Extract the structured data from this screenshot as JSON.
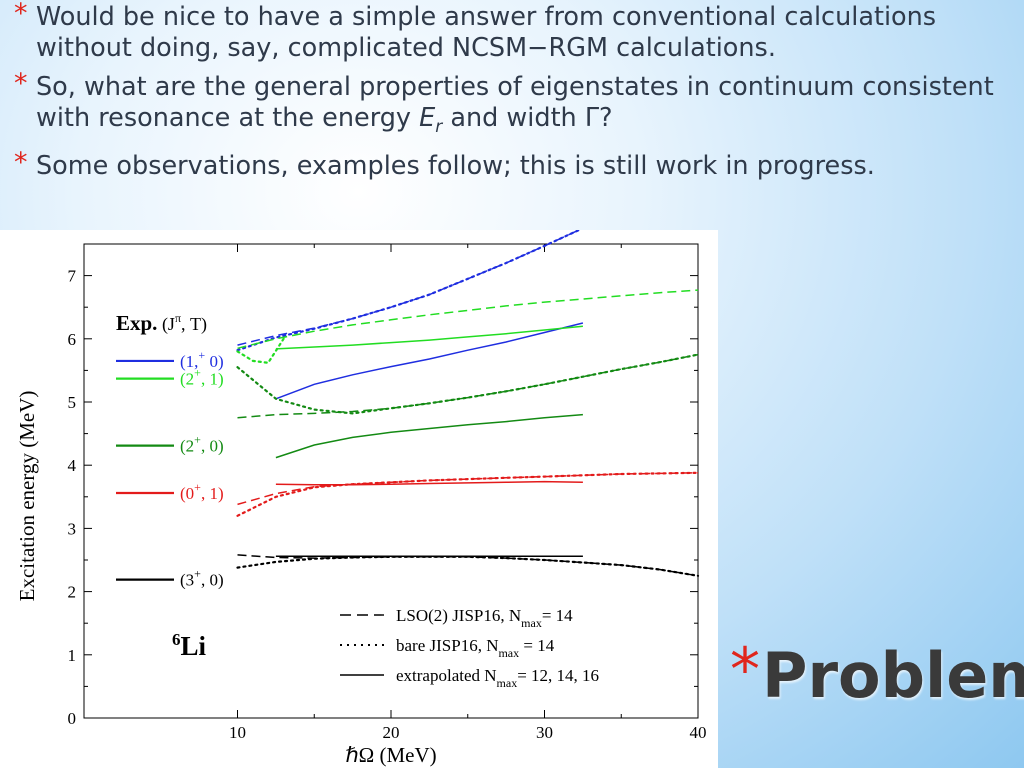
{
  "slide": {
    "bullets": [
      {
        "text": "Would be nice to have a simple answer from conventional calculations without doing, say, complicated NCSM−RGM calculations."
      },
      {
        "text_before": "So, what are the general properties of eigenstates in continuum consistent with resonance at the energy ",
        "symbol": "E",
        "subscript": "r",
        "text_after": " and width Γ?"
      },
      {
        "text": "Some observations, examples follow; this is still work in progress."
      }
    ],
    "title": "Problem",
    "star_glyph": "*",
    "accent_color": "#e0261d"
  },
  "chart_data": {
    "type": "line",
    "xlabel": "ℏΩ (MeV)",
    "ylabel": "Excitation energy (MeV)",
    "xlim": [
      0,
      40
    ],
    "ylim": [
      0,
      7.5
    ],
    "xticks": [
      10,
      20,
      30,
      40
    ],
    "yticks": [
      0,
      1,
      2,
      3,
      4,
      5,
      6,
      7
    ],
    "grid": false,
    "exp_header": {
      "bold": "Exp.",
      "rest": " (J",
      "sup": "π",
      "tail": ", T)"
    },
    "nucleus": {
      "mass": "6",
      "symbol": "Li"
    },
    "experimental_levels": [
      {
        "label_pre": "(1,",
        "label_sup": "+",
        "label_post": " 0)",
        "value": 5.65,
        "color": "#1f2ee0"
      },
      {
        "label_pre": "(2",
        "label_sup": "+",
        "label_post": ", 1)",
        "value": 5.37,
        "color": "#22dd22"
      },
      {
        "label_pre": "(2",
        "label_sup": "+",
        "label_post": ", 0)",
        "value": 4.31,
        "color": "#138a13"
      },
      {
        "label_pre": "(0",
        "label_sup": "+",
        "label_post": ", 1)",
        "value": 3.56,
        "color": "#e31b1b"
      },
      {
        "label_pre": "(3",
        "label_sup": "+",
        "label_post": ", 0)",
        "value": 2.19,
        "color": "#000000"
      }
    ],
    "legend": [
      {
        "style": "dashed",
        "text": "LSO(2) JISP16, N",
        "sub": "max",
        "tail": "= 14"
      },
      {
        "style": "dotted",
        "text": "bare JISP16, N",
        "sub": "max",
        "tail": " = 14"
      },
      {
        "style": "solid",
        "text": "extrapolated N",
        "sub": "max",
        "tail": "= 12, 14, 16"
      }
    ],
    "series": [
      {
        "state": "(1+,0)",
        "style": "dashed",
        "color": "#1f2ee0",
        "x": [
          10,
          12.5,
          15,
          17.5,
          20,
          22.5,
          25,
          27.5,
          30,
          32.5
        ],
        "y": [
          5.9,
          6.05,
          6.17,
          6.32,
          6.5,
          6.7,
          6.95,
          7.2,
          7.47,
          7.75
        ]
      },
      {
        "state": "(1+,0)",
        "style": "dotted",
        "color": "#1f2ee0",
        "x": [
          10,
          12.5,
          15,
          17.5,
          20,
          22.5,
          25,
          27.5,
          30,
          32.5
        ],
        "y": [
          5.82,
          6.02,
          6.16,
          6.32,
          6.5,
          6.7,
          6.95,
          7.2,
          7.47,
          7.75
        ]
      },
      {
        "state": "(1+,0)",
        "style": "solid",
        "color": "#1f2ee0",
        "x": [
          12.5,
          15,
          17.5,
          20,
          22.5,
          25,
          27.5,
          30,
          32.5
        ],
        "y": [
          5.05,
          5.28,
          5.43,
          5.56,
          5.68,
          5.82,
          5.95,
          6.1,
          6.25
        ]
      },
      {
        "state": "(2+,1)",
        "style": "dashed",
        "color": "#22dd22",
        "x": [
          10,
          12.5,
          15,
          17.5,
          20,
          22.5,
          25,
          27.5,
          30,
          32.5,
          35,
          37.5,
          40
        ],
        "y": [
          5.85,
          6.0,
          6.12,
          6.22,
          6.3,
          6.38,
          6.45,
          6.52,
          6.58,
          6.63,
          6.68,
          6.73,
          6.77
        ]
      },
      {
        "state": "(2+,1)",
        "style": "dotted",
        "color": "#22dd22",
        "x": [
          10,
          11,
          12,
          13
        ],
        "y": [
          5.8,
          5.65,
          5.62,
          6.0
        ]
      },
      {
        "state": "(2+,1)",
        "style": "solid",
        "color": "#22dd22",
        "x": [
          12.5,
          15,
          17.5,
          20,
          22.5,
          25,
          27.5,
          30,
          32.5
        ],
        "y": [
          5.84,
          5.87,
          5.9,
          5.94,
          5.98,
          6.03,
          6.08,
          6.14,
          6.2
        ]
      },
      {
        "state": "(2+,0)",
        "style": "dashed",
        "color": "#138a13",
        "x": [
          10,
          12.5,
          15,
          17.5,
          20,
          22.5,
          25,
          27.5,
          30,
          32.5,
          35,
          37.5,
          40
        ],
        "y": [
          4.75,
          4.8,
          4.82,
          4.85,
          4.9,
          4.98,
          5.07,
          5.17,
          5.28,
          5.4,
          5.52,
          5.63,
          5.75
        ]
      },
      {
        "state": "(2+,0)",
        "style": "dotted",
        "color": "#138a13",
        "x": [
          10,
          12.5,
          15,
          17.5,
          20,
          22.5,
          25,
          27.5,
          30,
          32.5,
          35,
          37.5,
          40
        ],
        "y": [
          5.55,
          5.05,
          4.88,
          4.82,
          4.9,
          4.98,
          5.07,
          5.17,
          5.28,
          5.4,
          5.52,
          5.63,
          5.75
        ]
      },
      {
        "state": "(2+,0)",
        "style": "solid",
        "color": "#138a13",
        "x": [
          12.5,
          15,
          17.5,
          20,
          22.5,
          25,
          27.5,
          30,
          32.5
        ],
        "y": [
          4.12,
          4.32,
          4.44,
          4.52,
          4.58,
          4.64,
          4.69,
          4.75,
          4.8
        ]
      },
      {
        "state": "(0+,1)",
        "style": "dashed",
        "color": "#e31b1b",
        "x": [
          10,
          12.5,
          15,
          17.5,
          20,
          22.5,
          25,
          27.5,
          30,
          32.5,
          35,
          37.5,
          40
        ],
        "y": [
          3.38,
          3.55,
          3.66,
          3.7,
          3.73,
          3.76,
          3.78,
          3.8,
          3.82,
          3.84,
          3.86,
          3.87,
          3.88
        ]
      },
      {
        "state": "(0+,1)",
        "style": "dotted",
        "color": "#e31b1b",
        "x": [
          10,
          12.5,
          15,
          17.5,
          20,
          22.5,
          25,
          27.5,
          30,
          32.5,
          35,
          37.5,
          40
        ],
        "y": [
          3.2,
          3.5,
          3.65,
          3.7,
          3.73,
          3.76,
          3.78,
          3.8,
          3.82,
          3.84,
          3.86,
          3.87,
          3.88
        ]
      },
      {
        "state": "(0+,1)",
        "style": "solid",
        "color": "#e31b1b",
        "x": [
          12.5,
          15,
          17.5,
          20,
          22.5,
          25,
          27.5,
          30,
          32.5
        ],
        "y": [
          3.7,
          3.69,
          3.69,
          3.7,
          3.71,
          3.72,
          3.73,
          3.74,
          3.73
        ]
      },
      {
        "state": "(3+,0)",
        "style": "dashed",
        "color": "#000000",
        "x": [
          10,
          12.5,
          15,
          17.5,
          20,
          22.5,
          25,
          27.5,
          30,
          32.5,
          35,
          37.5,
          40
        ],
        "y": [
          2.58,
          2.54,
          2.53,
          2.54,
          2.55,
          2.55,
          2.55,
          2.53,
          2.5,
          2.46,
          2.42,
          2.35,
          2.25
        ]
      },
      {
        "state": "(3+,0)",
        "style": "dotted",
        "color": "#000000",
        "x": [
          10,
          12.5,
          15,
          17.5,
          20,
          22.5,
          25,
          27.5,
          30,
          32.5,
          35,
          37.5,
          40
        ],
        "y": [
          2.38,
          2.47,
          2.52,
          2.54,
          2.55,
          2.55,
          2.55,
          2.53,
          2.5,
          2.46,
          2.42,
          2.35,
          2.25
        ]
      },
      {
        "state": "(3+,0)",
        "style": "solid",
        "color": "#000000",
        "x": [
          12.5,
          15,
          17.5,
          20,
          22.5,
          25,
          27.5,
          30,
          32.5
        ],
        "y": [
          2.56,
          2.56,
          2.56,
          2.56,
          2.56,
          2.56,
          2.56,
          2.56,
          2.56
        ]
      }
    ]
  }
}
